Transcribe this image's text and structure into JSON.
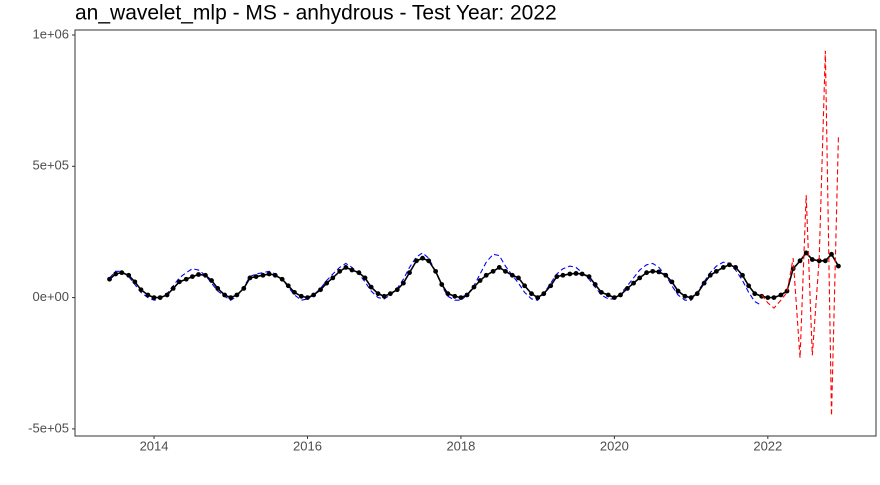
{
  "chart_data": {
    "type": "line",
    "title": "an_wavelet_mlp - MS - anhydrous - Test Year: 2022",
    "x": [
      2013.42,
      2013.5,
      2013.58,
      2013.67,
      2013.75,
      2013.83,
      2013.92,
      2014,
      2014.08,
      2014.17,
      2014.25,
      2014.33,
      2014.42,
      2014.5,
      2014.58,
      2014.67,
      2014.75,
      2014.83,
      2014.92,
      2015,
      2015.08,
      2015.17,
      2015.25,
      2015.33,
      2015.42,
      2015.5,
      2015.58,
      2015.67,
      2015.75,
      2015.83,
      2015.92,
      2016,
      2016.08,
      2016.17,
      2016.25,
      2016.33,
      2016.42,
      2016.5,
      2016.58,
      2016.67,
      2016.75,
      2016.83,
      2016.92,
      2017,
      2017.08,
      2017.17,
      2017.25,
      2017.33,
      2017.42,
      2017.5,
      2017.58,
      2017.67,
      2017.75,
      2017.83,
      2017.92,
      2018,
      2018.08,
      2018.17,
      2018.25,
      2018.33,
      2018.42,
      2018.5,
      2018.58,
      2018.67,
      2018.75,
      2018.83,
      2018.92,
      2019,
      2019.08,
      2019.17,
      2019.25,
      2019.33,
      2019.42,
      2019.5,
      2019.58,
      2019.67,
      2019.75,
      2019.83,
      2019.92,
      2020,
      2020.08,
      2020.17,
      2020.25,
      2020.33,
      2020.42,
      2020.5,
      2020.58,
      2020.67,
      2020.75,
      2020.83,
      2020.92,
      2021,
      2021.08,
      2021.17,
      2021.25,
      2021.33,
      2021.42,
      2021.5,
      2021.58,
      2021.67,
      2021.75,
      2021.83,
      2021.92,
      2022,
      2022.08,
      2022.17,
      2022.25,
      2022.33,
      2022.42,
      2022.5,
      2022.58,
      2022.67,
      2022.75,
      2022.83,
      2022.92
    ],
    "series": [
      {
        "color": "#0000ff",
        "linetype": "dashed",
        "points": false,
        "values": [
          75000,
          100000,
          100000,
          80000,
          50000,
          20000,
          0,
          -10000,
          -5000,
          15000,
          45000,
          75000,
          95000,
          110000,
          105000,
          85000,
          55000,
          25000,
          5000,
          -10000,
          5000,
          40000,
          80000,
          90000,
          95000,
          100000,
          90000,
          70000,
          40000,
          10000,
          -10000,
          -5000,
          10000,
          35000,
          65000,
          90000,
          115000,
          130000,
          115000,
          90000,
          60000,
          25000,
          0,
          -5000,
          10000,
          35000,
          70000,
          115000,
          155000,
          170000,
          150000,
          100000,
          45000,
          5000,
          -10000,
          -10000,
          10000,
          45000,
          90000,
          135000,
          165000,
          160000,
          120000,
          85000,
          55000,
          20000,
          -5000,
          -10000,
          15000,
          55000,
          90000,
          110000,
          120000,
          115000,
          95000,
          70000,
          40000,
          10000,
          -5000,
          -5000,
          15000,
          45000,
          75000,
          105000,
          125000,
          130000,
          115000,
          85000,
          45000,
          10000,
          -10000,
          -10000,
          20000,
          60000,
          95000,
          120000,
          135000,
          130000,
          105000,
          65000,
          20000,
          -15000,
          -30000,
          null,
          null,
          null,
          null,
          null,
          null,
          null,
          null,
          null,
          null,
          null,
          null
        ]
      },
      {
        "color": "#000000",
        "linetype": "solid",
        "points": true,
        "values": [
          70000,
          90000,
          95000,
          85000,
          60000,
          30000,
          10000,
          0,
          0,
          10000,
          35000,
          60000,
          70000,
          80000,
          88000,
          85000,
          65000,
          35000,
          10000,
          0,
          10000,
          35000,
          75000,
          80000,
          85000,
          90000,
          85000,
          70000,
          45000,
          20000,
          5000,
          0,
          10000,
          30000,
          55000,
          75000,
          100000,
          115000,
          105000,
          95000,
          75000,
          40000,
          15000,
          5000,
          15000,
          30000,
          55000,
          95000,
          140000,
          150000,
          140000,
          100000,
          50000,
          15000,
          5000,
          0,
          10000,
          40000,
          65000,
          85000,
          100000,
          115000,
          100000,
          85000,
          75000,
          45000,
          15000,
          0,
          15000,
          45000,
          80000,
          85000,
          90000,
          92000,
          90000,
          80000,
          50000,
          20000,
          10000,
          0,
          10000,
          35000,
          55000,
          75000,
          95000,
          100000,
          98000,
          85000,
          60000,
          25000,
          5000,
          0,
          15000,
          55000,
          85000,
          100000,
          115000,
          125000,
          115000,
          85000,
          45000,
          15000,
          5000,
          0,
          0,
          10000,
          25000,
          110000,
          140000,
          170000,
          145000,
          140000,
          140000,
          165000,
          120000
        ]
      },
      {
        "color": "#ff0000",
        "linetype": "dashed",
        "points": false,
        "x": [
          2021.92,
          2022,
          2022.08,
          2022.17,
          2022.25,
          2022.33,
          2022.42,
          2022.5,
          2022.58,
          2022.67,
          2022.75,
          2022.83,
          2022.92
        ],
        "values": [
          10000,
          -20000,
          -40000,
          -10000,
          20000,
          150000,
          -230000,
          390000,
          -220000,
          150000,
          940000,
          -450000,
          610000
        ]
      }
    ],
    "xlim": [
      2012.97,
      2023.41
    ],
    "xticks": [
      2014,
      2016,
      2018,
      2020,
      2022
    ],
    "ylim": [
      -527000,
      1019000
    ],
    "yticks": [
      {
        "value": -500000,
        "label": "-5e+05"
      },
      {
        "value": 0,
        "label": "0e+00"
      },
      {
        "value": 500000,
        "label": "5e+05"
      },
      {
        "value": 1000000,
        "label": "1e+06"
      }
    ],
    "grid": false
  }
}
